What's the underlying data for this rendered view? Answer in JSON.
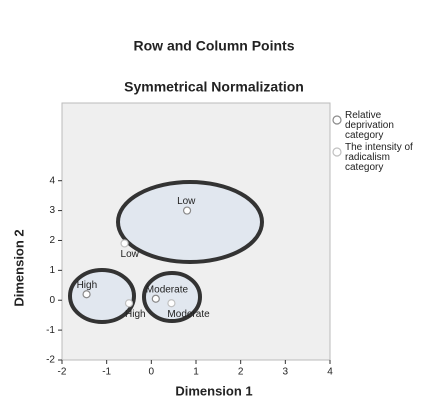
{
  "chart_data": {
    "type": "scatter",
    "title": "Row and Column Points",
    "subtitle": "Symmetrical Normalization",
    "x_label": "Dimension 1",
    "y_label": "Dimension 2",
    "xlim": [
      -2,
      4
    ],
    "ylim": [
      -2,
      6.6
    ],
    "xticks": [
      -2,
      -1,
      0,
      1,
      2,
      3,
      4
    ],
    "yticks": [
      -2,
      -1,
      0,
      1,
      2,
      3,
      4
    ],
    "legend": "right",
    "series": [
      {
        "name": "Relative deprivation category",
        "color": "#8a8a8a",
        "x": [
          0.8,
          -1.45,
          0.1
        ],
        "y": [
          3.0,
          0.2,
          0.05
        ],
        "point_labels": [
          "Low",
          "High",
          "Moderate"
        ]
      },
      {
        "name": "The intensity of radicalism category",
        "color": "#c0c0c0",
        "x": [
          -0.6,
          -0.5,
          0.45
        ],
        "y": [
          1.9,
          -0.1,
          -0.1
        ],
        "point_labels": [
          "Low",
          "High",
          "Moderate"
        ]
      }
    ]
  }
}
